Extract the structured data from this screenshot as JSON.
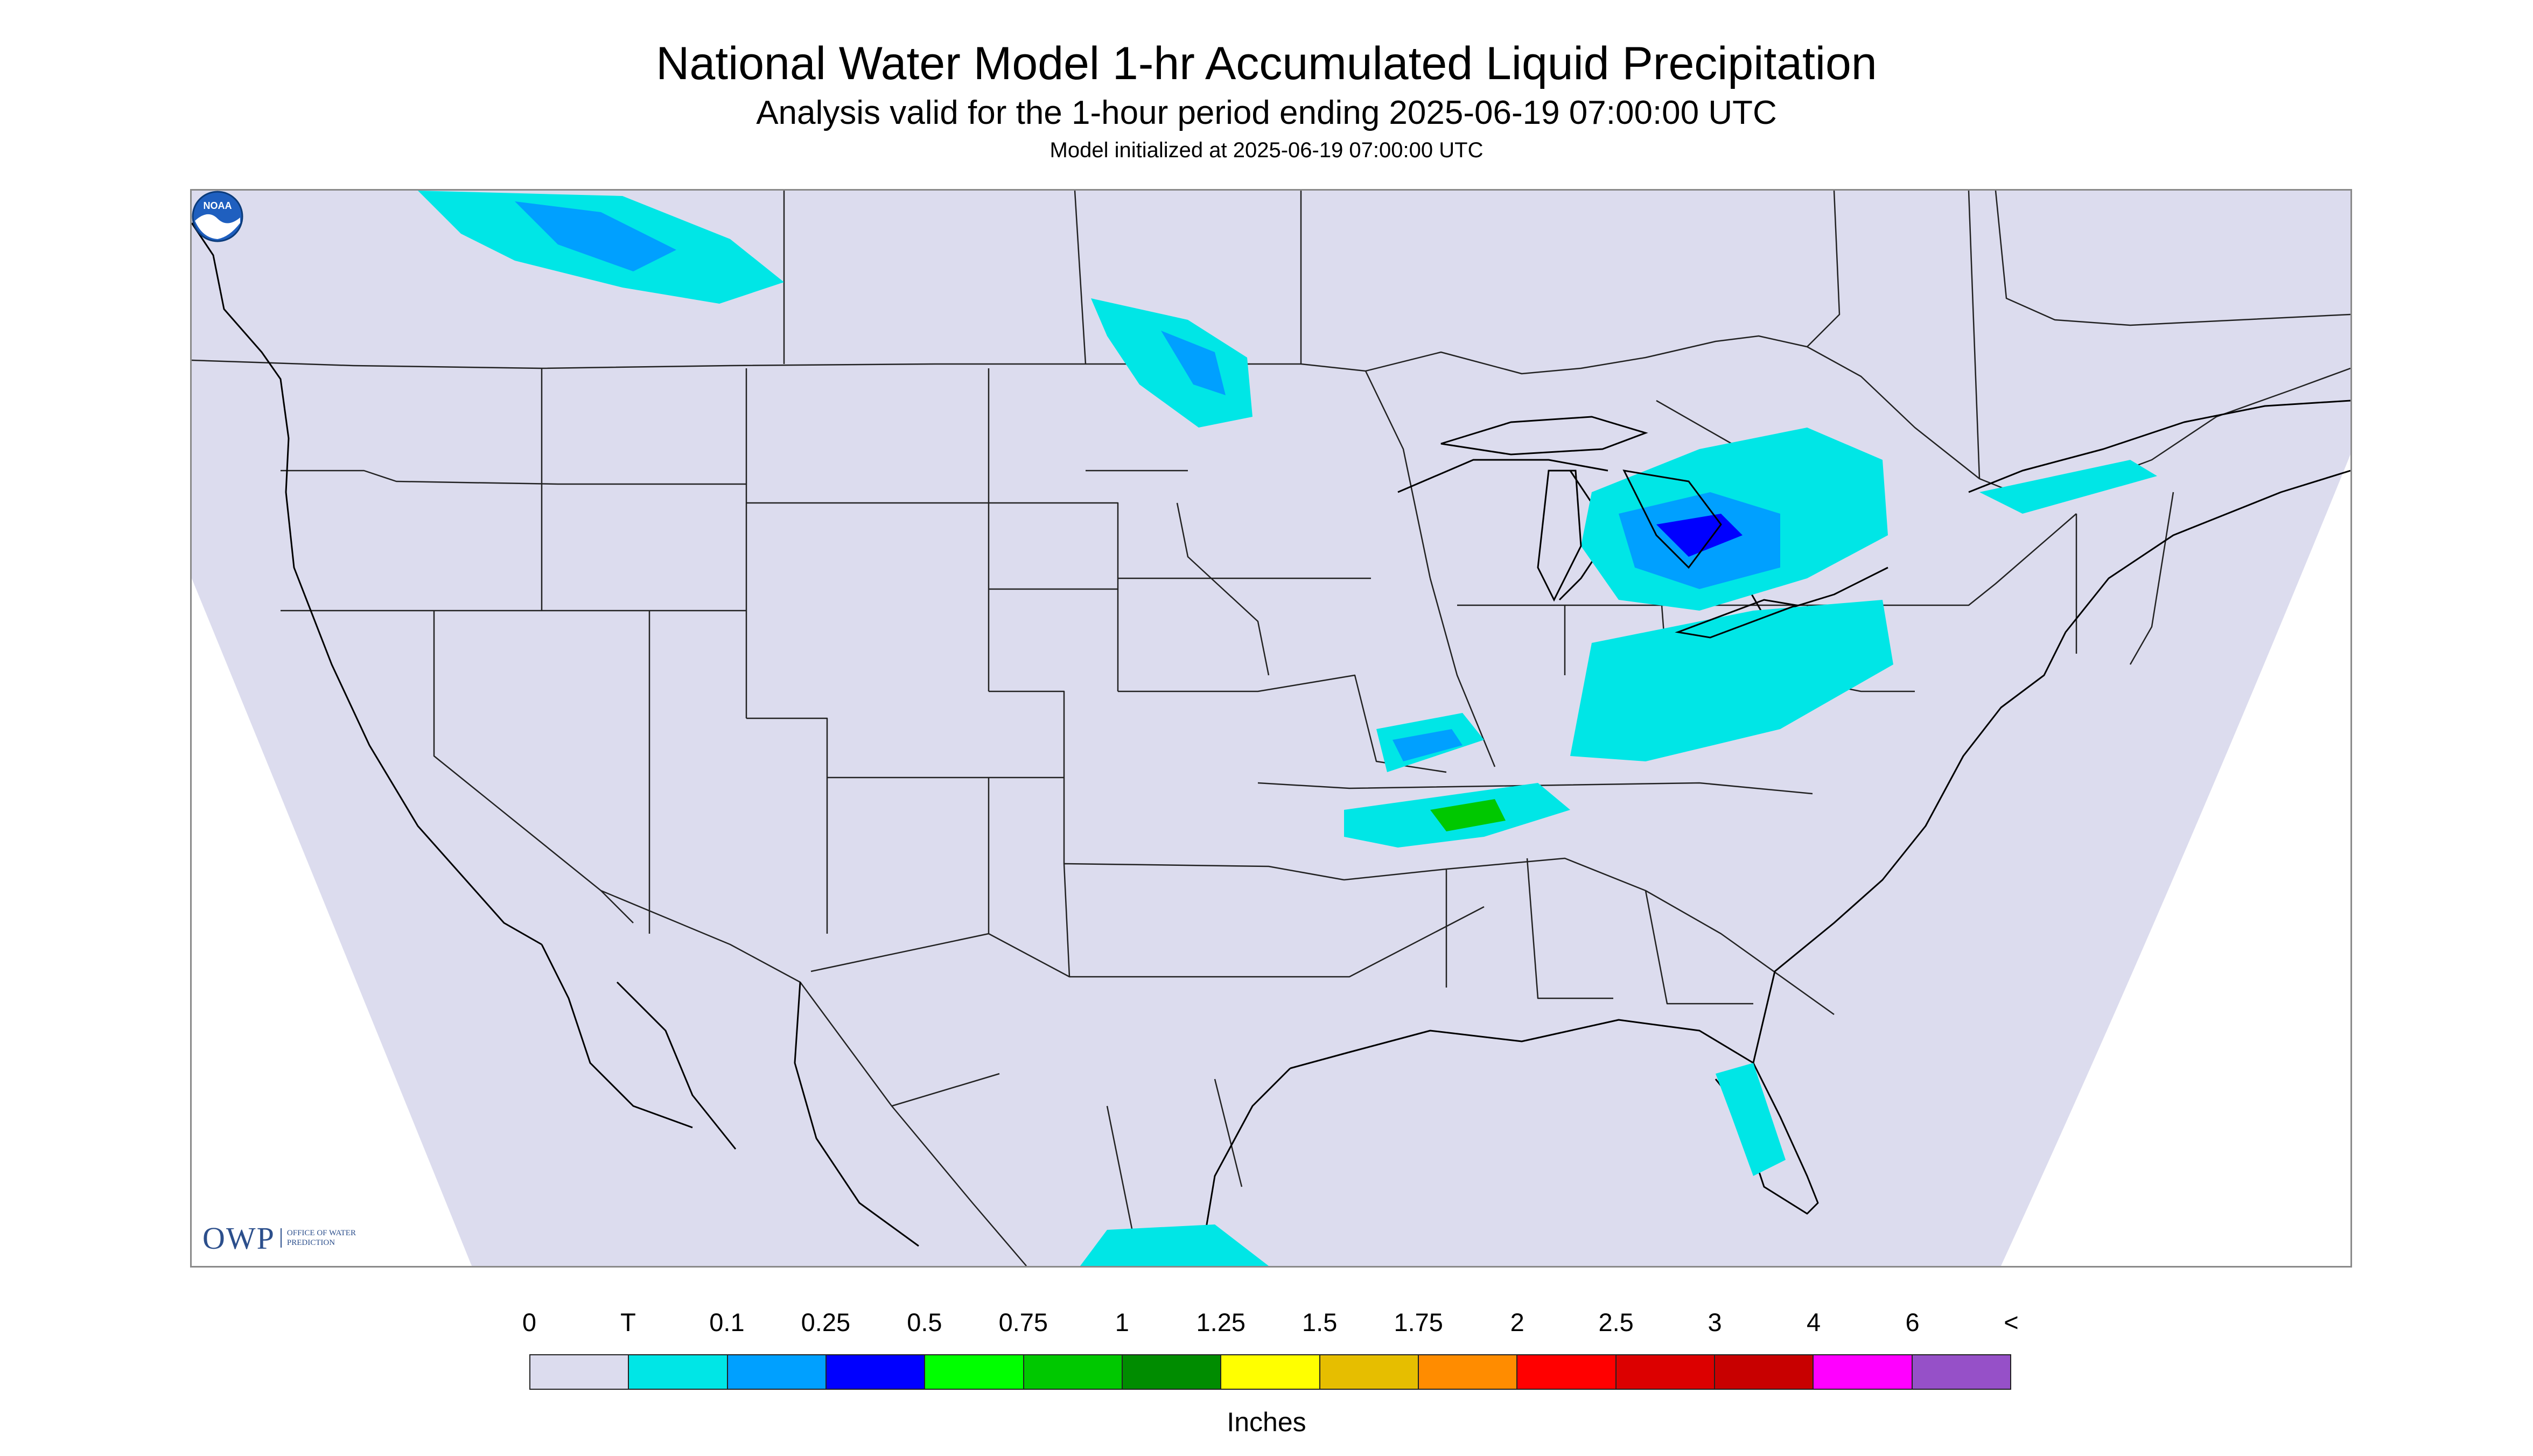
{
  "title": "National Water Model 1-hr Accumulated Liquid Precipitation",
  "subtitle": "Analysis valid for the 1-hour period ending 2025-06-19 07:00:00 UTC",
  "init_line": "Model initialized at 2025-06-19 07:00:00 UTC",
  "map": {
    "region": "Continental United States",
    "background_color": "#dcdcee",
    "border_color": "#000000",
    "precip_areas": [
      {
        "region": "Southern British Columbia / Alberta",
        "color": "#00e6e6"
      },
      {
        "region": "Southern Alberta core",
        "color": "#00a0ff"
      },
      {
        "region": "Minnesota / North Dakota",
        "color": "#00e6e6"
      },
      {
        "region": "Northern Minnesota core",
        "color": "#00a0ff"
      },
      {
        "region": "Lower Michigan / Lake Huron",
        "color": "#00e6e6"
      },
      {
        "region": "Michigan core",
        "color": "#00a0ff"
      },
      {
        "region": "Michigan max",
        "color": "#0000ff"
      },
      {
        "region": "Ohio Valley / Kentucky",
        "color": "#00e6e6"
      },
      {
        "region": "Missouri / Illinois band",
        "color": "#00e6e6"
      },
      {
        "region": "Missouri band core",
        "color": "#00a0ff"
      },
      {
        "region": "Tennessee / Arkansas",
        "color": "#00e6e6"
      },
      {
        "region": "Western Tennessee core",
        "color": "#00c800"
      },
      {
        "region": "Quebec / Maine",
        "color": "#00e6e6"
      },
      {
        "region": "Florida west coast",
        "color": "#00e6e6"
      },
      {
        "region": "Gulf / Caribbean south edge",
        "color": "#00e6e6"
      }
    ]
  },
  "legend": {
    "labels": [
      "0",
      "T",
      "0.1",
      "0.25",
      "0.5",
      "0.75",
      "1",
      "1.25",
      "1.5",
      "1.75",
      "2",
      "2.5",
      "3",
      "4",
      "6",
      "<"
    ],
    "colors": [
      "#dcdcee",
      "#00e6e6",
      "#00a0ff",
      "#0000ff",
      "#00ff00",
      "#00c800",
      "#008c00",
      "#ffff00",
      "#e6be00",
      "#ff8c00",
      "#ff0000",
      "#dc0000",
      "#c80000",
      "#ff00ff",
      "#9650c8"
    ],
    "units": "Inches"
  },
  "logos": {
    "owp_mark": "OWP",
    "owp_text": "OFFICE OF WATER PREDICTION",
    "noaa_text": "NOAA"
  }
}
